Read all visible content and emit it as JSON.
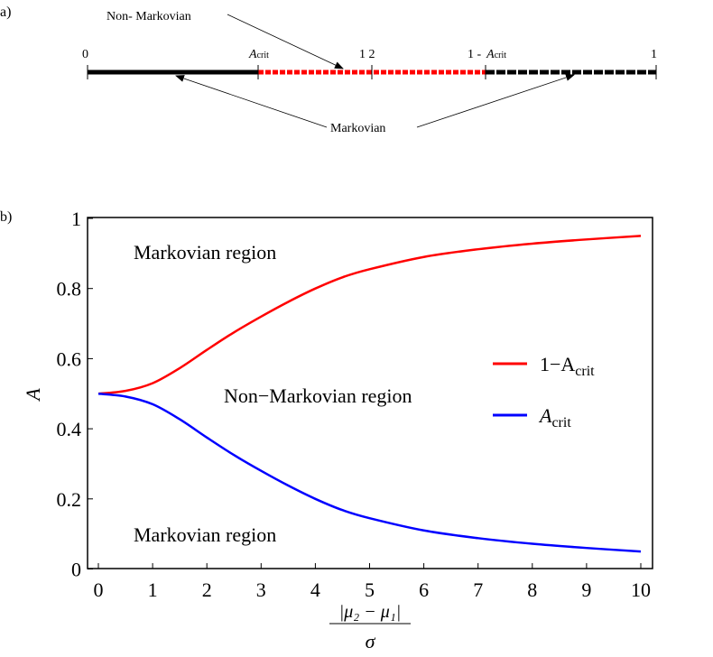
{
  "panel_a": {
    "label": "a)",
    "tick_labels": {
      "zero": "0",
      "acrit": "A",
      "acrit_sub": "crit",
      "half": "1 2",
      "one_minus": "1 -",
      "one_minus_a": "A",
      "one_minus_sub": "crit",
      "one": "1"
    },
    "annotation_non_markovian": "Non- Markovian",
    "annotation_markovian": "Markovian",
    "colors": {
      "markovian": "#000000",
      "non_markovian": "#ff0000"
    }
  },
  "chart_data": {
    "type": "line",
    "panel_label": "b)",
    "xlabel_numerator": "|μ₂ − μ₁|",
    "xlabel_denominator": "σ",
    "ylabel": "A",
    "xlim": [
      0,
      10
    ],
    "ylim": [
      0,
      1
    ],
    "xticks": [
      "0",
      "1",
      "2",
      "3",
      "4",
      "5",
      "6",
      "7",
      "8",
      "9",
      "10"
    ],
    "yticks": [
      "0",
      "0.2",
      "0.4",
      "0.6",
      "0.8",
      "1"
    ],
    "grid": false,
    "legend_position": "right",
    "annotations": [
      "Markovian region",
      "Non−Markovian region",
      "Markovian region"
    ],
    "x": [
      0,
      0.5,
      1,
      1.5,
      2,
      2.5,
      3,
      3.5,
      4,
      4.5,
      5,
      6,
      7,
      8,
      9,
      10
    ],
    "series": [
      {
        "name": "1−A",
        "name_sub": "crit",
        "color": "#ff0000",
        "values": [
          0.5,
          0.508,
          0.53,
          0.573,
          0.625,
          0.675,
          0.72,
          0.762,
          0.8,
          0.832,
          0.855,
          0.89,
          0.912,
          0.928,
          0.94,
          0.95
        ]
      },
      {
        "name": "A",
        "name_sub": "crit",
        "color": "#0000ff",
        "values": [
          0.5,
          0.492,
          0.47,
          0.427,
          0.375,
          0.325,
          0.28,
          0.238,
          0.2,
          0.168,
          0.145,
          0.11,
          0.088,
          0.072,
          0.06,
          0.05
        ]
      }
    ]
  }
}
